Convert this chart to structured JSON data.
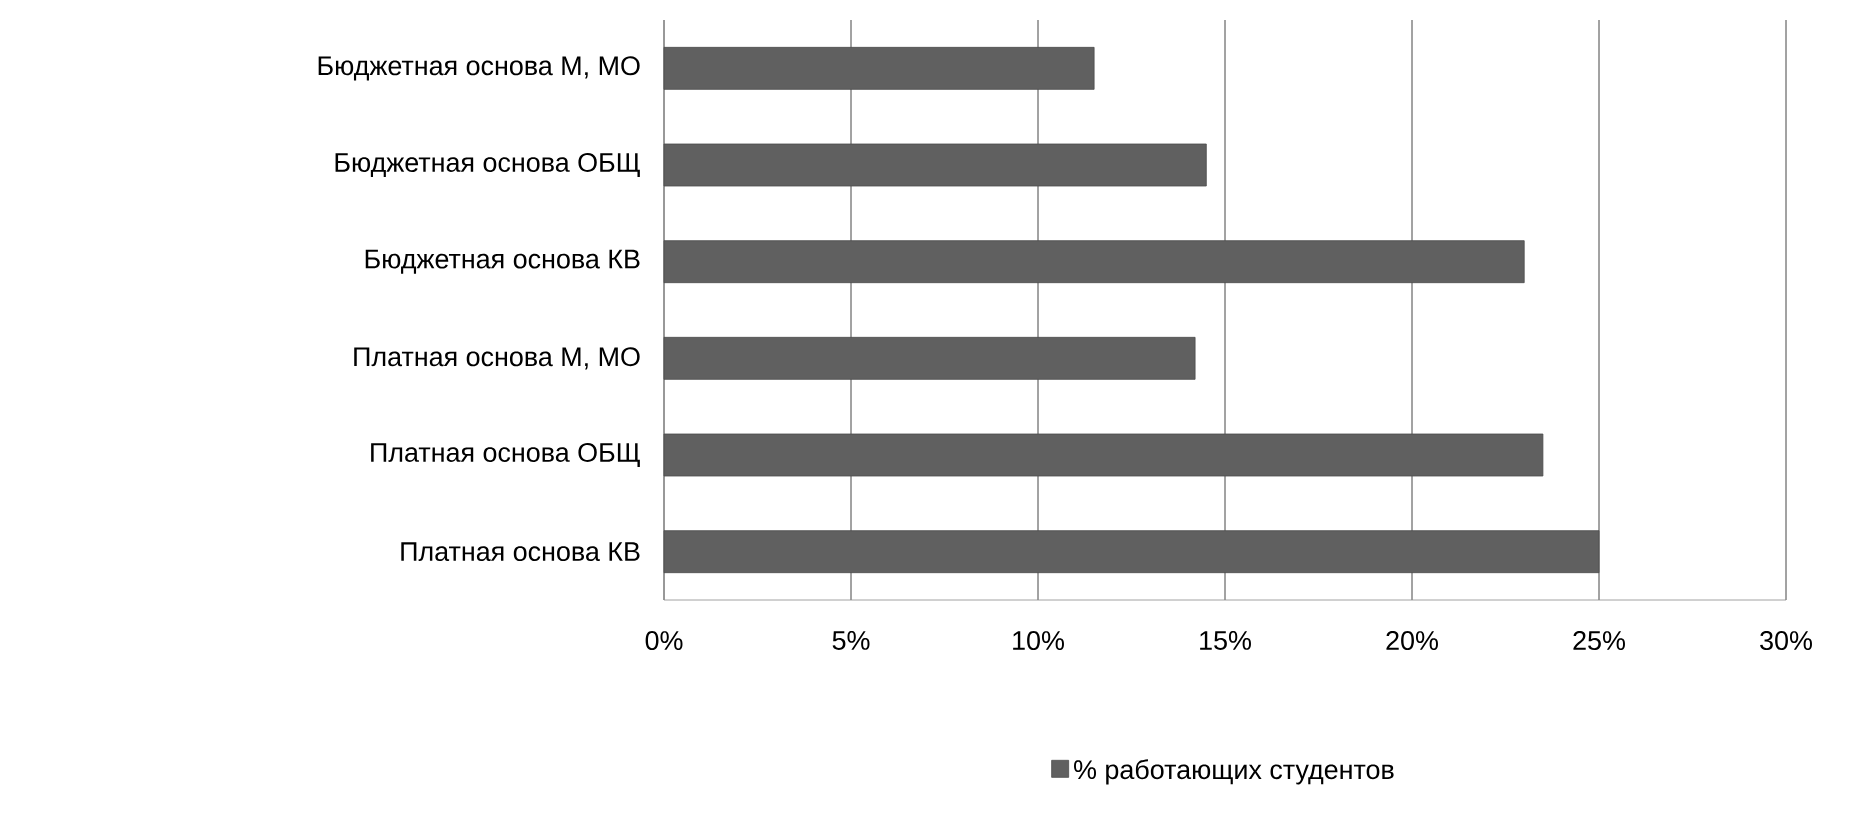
{
  "chart_data": {
    "type": "bar",
    "orientation": "horizontal",
    "categories": [
      "Бюджетная  основа М, МО",
      "Бюджетная  основа ОБЩ",
      "Бюджетная  основа КВ",
      "Платная основа М, МО",
      "Платная основа ОБЩ",
      "Платная основа КВ"
    ],
    "series": [
      {
        "name": "% работающих студентов",
        "color": "#606060",
        "values": [
          11.5,
          14.5,
          23,
          14.2,
          23.5,
          25
        ]
      }
    ],
    "xlim": [
      0,
      30
    ],
    "xticks": [
      {
        "value": 0,
        "label": "0%"
      },
      {
        "value": 5,
        "label": "5%"
      },
      {
        "value": 10,
        "label": "10%"
      },
      {
        "value": 15,
        "label": "15%"
      },
      {
        "value": 20,
        "label": "20%"
      },
      {
        "value": 25,
        "label": "25%"
      },
      {
        "value": 30,
        "label": "30%"
      }
    ],
    "grid": "x",
    "legend": "bottom"
  }
}
